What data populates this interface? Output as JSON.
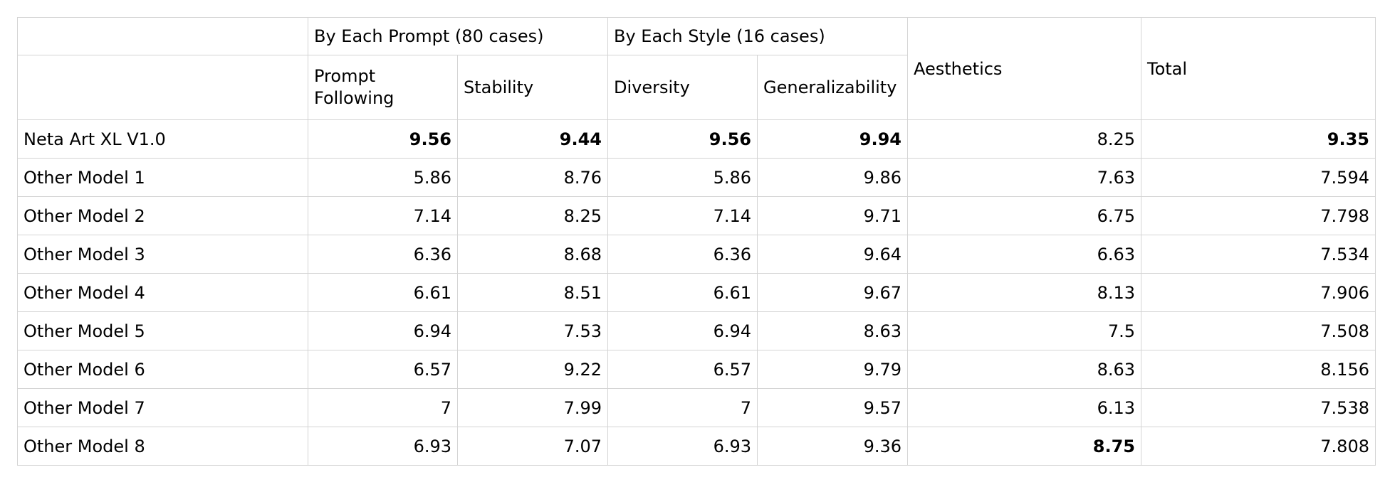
{
  "header": {
    "group_prompt": "By Each Prompt (80 cases)",
    "group_style": "By Each Style (16 cases)",
    "aesthetics": "Aesthetics",
    "total": "Total",
    "prompt_following": "Prompt Following",
    "stability": "Stability",
    "diversity": "Diversity",
    "generalizability": "Generalizability"
  },
  "rows": [
    {
      "model": "Neta Art XL V1.0",
      "prompt_following": "9.56",
      "stability": "9.44",
      "diversity": "9.56",
      "generalizability": "9.94",
      "aesthetics": "8.25",
      "total": "9.35"
    },
    {
      "model": "Other Model 1",
      "prompt_following": "5.86",
      "stability": "8.76",
      "diversity": "5.86",
      "generalizability": "9.86",
      "aesthetics": "7.63",
      "total": "7.594"
    },
    {
      "model": "Other Model 2",
      "prompt_following": "7.14",
      "stability": "8.25",
      "diversity": "7.14",
      "generalizability": "9.71",
      "aesthetics": "6.75",
      "total": "7.798"
    },
    {
      "model": "Other Model 3",
      "prompt_following": "6.36",
      "stability": "8.68",
      "diversity": "6.36",
      "generalizability": "9.64",
      "aesthetics": "6.63",
      "total": "7.534"
    },
    {
      "model": "Other Model 4",
      "prompt_following": "6.61",
      "stability": "8.51",
      "diversity": "6.61",
      "generalizability": "9.67",
      "aesthetics": "8.13",
      "total": "7.906"
    },
    {
      "model": "Other Model 5",
      "prompt_following": "6.94",
      "stability": "7.53",
      "diversity": "6.94",
      "generalizability": "8.63",
      "aesthetics": "7.5",
      "total": "7.508"
    },
    {
      "model": "Other Model 6",
      "prompt_following": "6.57",
      "stability": "9.22",
      "diversity": "6.57",
      "generalizability": "9.79",
      "aesthetics": "8.63",
      "total": "8.156"
    },
    {
      "model": "Other Model 7",
      "prompt_following": "7",
      "stability": "7.99",
      "diversity": "7",
      "generalizability": "9.57",
      "aesthetics": "6.13",
      "total": "7.538"
    },
    {
      "model": "Other Model 8",
      "prompt_following": "6.93",
      "stability": "7.07",
      "diversity": "6.93",
      "generalizability": "9.36",
      "aesthetics": "8.75",
      "total": "7.808"
    }
  ]
}
